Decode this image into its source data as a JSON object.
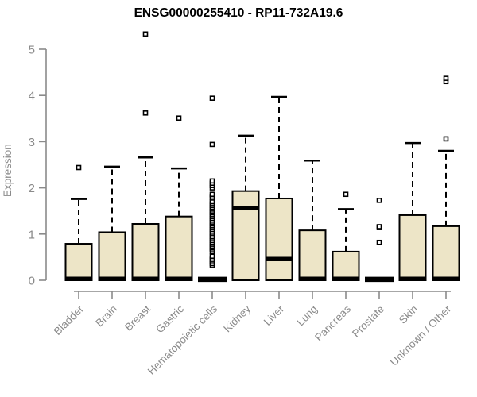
{
  "title": "ENSG00000255410 - RP11-732A19.6",
  "chart_data": {
    "type": "box",
    "title": "ENSG00000255410 - RP11-732A19.6",
    "ylabel": "Expression",
    "xlabel": "",
    "ylim": [
      0,
      5
    ],
    "yticks": [
      0,
      1,
      2,
      3,
      4,
      5
    ],
    "grid": false,
    "legend": "none",
    "box_fill": "#ede5c7",
    "box_stroke": "#000000",
    "axis_color": "#8a8a8a",
    "title_color": "#000000",
    "outlier_marker": "open-square",
    "categories": [
      "Bladder",
      "Brain",
      "Breast",
      "Gastric",
      "Hematopoietic cells",
      "Kidney",
      "Liver",
      "Lung",
      "Pancreas",
      "Prostate",
      "Skin",
      "Unknown / Other"
    ],
    "series": [
      {
        "category": "Bladder",
        "collapsed": false,
        "q1": 0,
        "median": 0.03,
        "q3": 0.79,
        "whisker_low": 0,
        "whisker_high": 1.76,
        "outliers": [
          2.44
        ]
      },
      {
        "category": "Brain",
        "collapsed": false,
        "q1": 0,
        "median": 0.03,
        "q3": 1.04,
        "whisker_low": 0,
        "whisker_high": 2.46,
        "outliers": []
      },
      {
        "category": "Breast",
        "collapsed": false,
        "q1": 0,
        "median": 0.03,
        "q3": 1.22,
        "whisker_low": 0,
        "whisker_high": 2.66,
        "outliers": [
          3.62,
          5.33
        ]
      },
      {
        "category": "Gastric",
        "collapsed": false,
        "q1": 0,
        "median": 0.03,
        "q3": 1.38,
        "whisker_low": 0,
        "whisker_high": 2.42,
        "outliers": [
          3.51
        ]
      },
      {
        "category": "Hematopoietic cells",
        "collapsed": true,
        "q1": 0,
        "median": 0.02,
        "q3": 0.04,
        "whisker_low": 0,
        "whisker_high": 0.04,
        "outliers": [
          0.32,
          0.36,
          0.4,
          0.44,
          0.48,
          0.52,
          0.62,
          0.66,
          0.7,
          0.74,
          0.78,
          0.82,
          0.86,
          0.9,
          0.94,
          0.98,
          1.02,
          1.06,
          1.1,
          1.14,
          1.18,
          1.22,
          1.26,
          1.3,
          1.34,
          1.38,
          1.42,
          1.46,
          1.5,
          1.54,
          1.58,
          1.62,
          1.66,
          1.7,
          1.78,
          1.82,
          1.86,
          2.0,
          2.05,
          2.1,
          2.15,
          2.94,
          3.94
        ]
      },
      {
        "category": "Kidney",
        "collapsed": false,
        "q1": 0,
        "median": 1.56,
        "q3": 1.93,
        "whisker_low": 0,
        "whisker_high": 3.13,
        "outliers": []
      },
      {
        "category": "Liver",
        "collapsed": false,
        "q1": 0,
        "median": 0.46,
        "q3": 1.77,
        "whisker_low": 0,
        "whisker_high": 3.97,
        "outliers": []
      },
      {
        "category": "Lung",
        "collapsed": false,
        "q1": 0,
        "median": 0.03,
        "q3": 1.08,
        "whisker_low": 0,
        "whisker_high": 2.59,
        "outliers": []
      },
      {
        "category": "Pancreas",
        "collapsed": false,
        "q1": 0,
        "median": 0.03,
        "q3": 0.62,
        "whisker_low": 0,
        "whisker_high": 1.54,
        "outliers": [
          1.86
        ]
      },
      {
        "category": "Prostate",
        "collapsed": true,
        "q1": 0,
        "median": 0.02,
        "q3": 0.04,
        "whisker_low": 0,
        "whisker_high": 0.04,
        "outliers": [
          0.82,
          1.14,
          1.16,
          1.73
        ]
      },
      {
        "category": "Skin",
        "collapsed": false,
        "q1": 0,
        "median": 0.03,
        "q3": 1.41,
        "whisker_low": 0,
        "whisker_high": 2.97,
        "outliers": []
      },
      {
        "category": "Unknown / Other",
        "collapsed": false,
        "q1": 0,
        "median": 0.03,
        "q3": 1.17,
        "whisker_low": 0,
        "whisker_high": 2.8,
        "outliers": [
          3.06,
          4.3,
          4.37
        ]
      }
    ]
  }
}
